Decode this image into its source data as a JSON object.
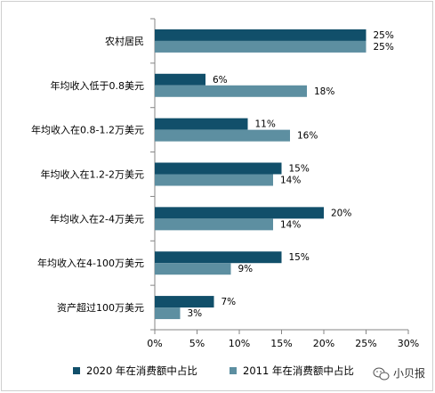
{
  "chart_data": {
    "type": "bar",
    "orientation": "horizontal",
    "categories": [
      "农村居民",
      "年均收入低于0.8美元",
      "年均收入在0.8-1.2万美元",
      "年均收入在1.2-2万美元",
      "年均收入在2-4万美元",
      "年均收入在4-100万美元",
      "资产超过100万美元"
    ],
    "series": [
      {
        "name": "2020 年在消费额中占比",
        "color": "#114f6a",
        "values": [
          25,
          6,
          11,
          15,
          20,
          15,
          7
        ],
        "labels": [
          "25%",
          "6%",
          "11%",
          "15%",
          "20%",
          "15%",
          "7%"
        ]
      },
      {
        "name": "2011 年在消费额中占比",
        "color": "#5d8fa1",
        "values": [
          25,
          18,
          16,
          14,
          14,
          9,
          3
        ],
        "labels": [
          "25%",
          "18%",
          "16%",
          "14%",
          "14%",
          "9%",
          "3%"
        ]
      }
    ],
    "xlim": [
      0,
      30
    ],
    "x_ticks": [
      "0%",
      "5%",
      "10%",
      "15%",
      "20%",
      "25%",
      "30%"
    ],
    "grid": false,
    "legend_position": "bottom"
  },
  "watermark": {
    "text": "小贝报",
    "icon": "wechat-icon"
  }
}
